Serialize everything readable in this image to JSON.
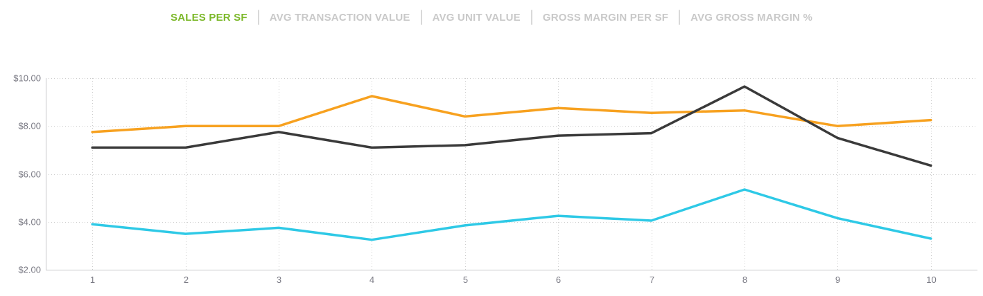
{
  "tabs": [
    {
      "label": "SALES PER SF",
      "active": true
    },
    {
      "label": "AVG TRANSACTION VALUE",
      "active": false
    },
    {
      "label": "AVG UNIT VALUE",
      "active": false
    },
    {
      "label": "GROSS MARGIN PER SF",
      "active": false
    },
    {
      "label": "AVG GROSS MARGIN %",
      "active": false
    }
  ],
  "colors": {
    "active_tab": "#7CB82A",
    "inactive_tab": "#C9C9C9",
    "tab_separator": "#D9D9D9",
    "axis_line": "#C5C7C9",
    "grid_dots": "#CCCCCC",
    "tick_label": "#7A7A84",
    "background": "#FFFFFF"
  },
  "chart_data": {
    "type": "line",
    "title": "",
    "xlabel": "",
    "ylabel": "",
    "x": [
      1,
      2,
      3,
      4,
      5,
      6,
      7,
      8,
      9,
      10
    ],
    "xlabels": [
      "1",
      "2",
      "3",
      "4",
      "5",
      "6",
      "7",
      "8",
      "9",
      "10"
    ],
    "ylim": [
      2,
      10
    ],
    "yticks": [
      {
        "value": 10,
        "label": "$10.00"
      },
      {
        "value": 8,
        "label": "$8.00"
      },
      {
        "value": 6,
        "label": "$6.00"
      },
      {
        "value": 4,
        "label": "$4.00"
      },
      {
        "value": 2,
        "label": "$2.00"
      }
    ],
    "grid": "dotted",
    "legend": "none",
    "series": [
      {
        "name": "orange",
        "color": "#F7A11F",
        "values": [
          7.75,
          8.0,
          8.0,
          9.25,
          8.4,
          8.75,
          8.55,
          8.65,
          8.0,
          8.25
        ]
      },
      {
        "name": "cyan",
        "color": "#2EC9E6",
        "values": [
          3.9,
          3.5,
          3.75,
          3.25,
          3.85,
          4.25,
          4.05,
          5.35,
          4.15,
          3.3
        ]
      },
      {
        "name": "black",
        "color": "#3A3A3A",
        "values": [
          7.1,
          7.1,
          7.75,
          7.1,
          7.2,
          7.6,
          7.7,
          9.65,
          7.5,
          6.35
        ]
      }
    ]
  }
}
